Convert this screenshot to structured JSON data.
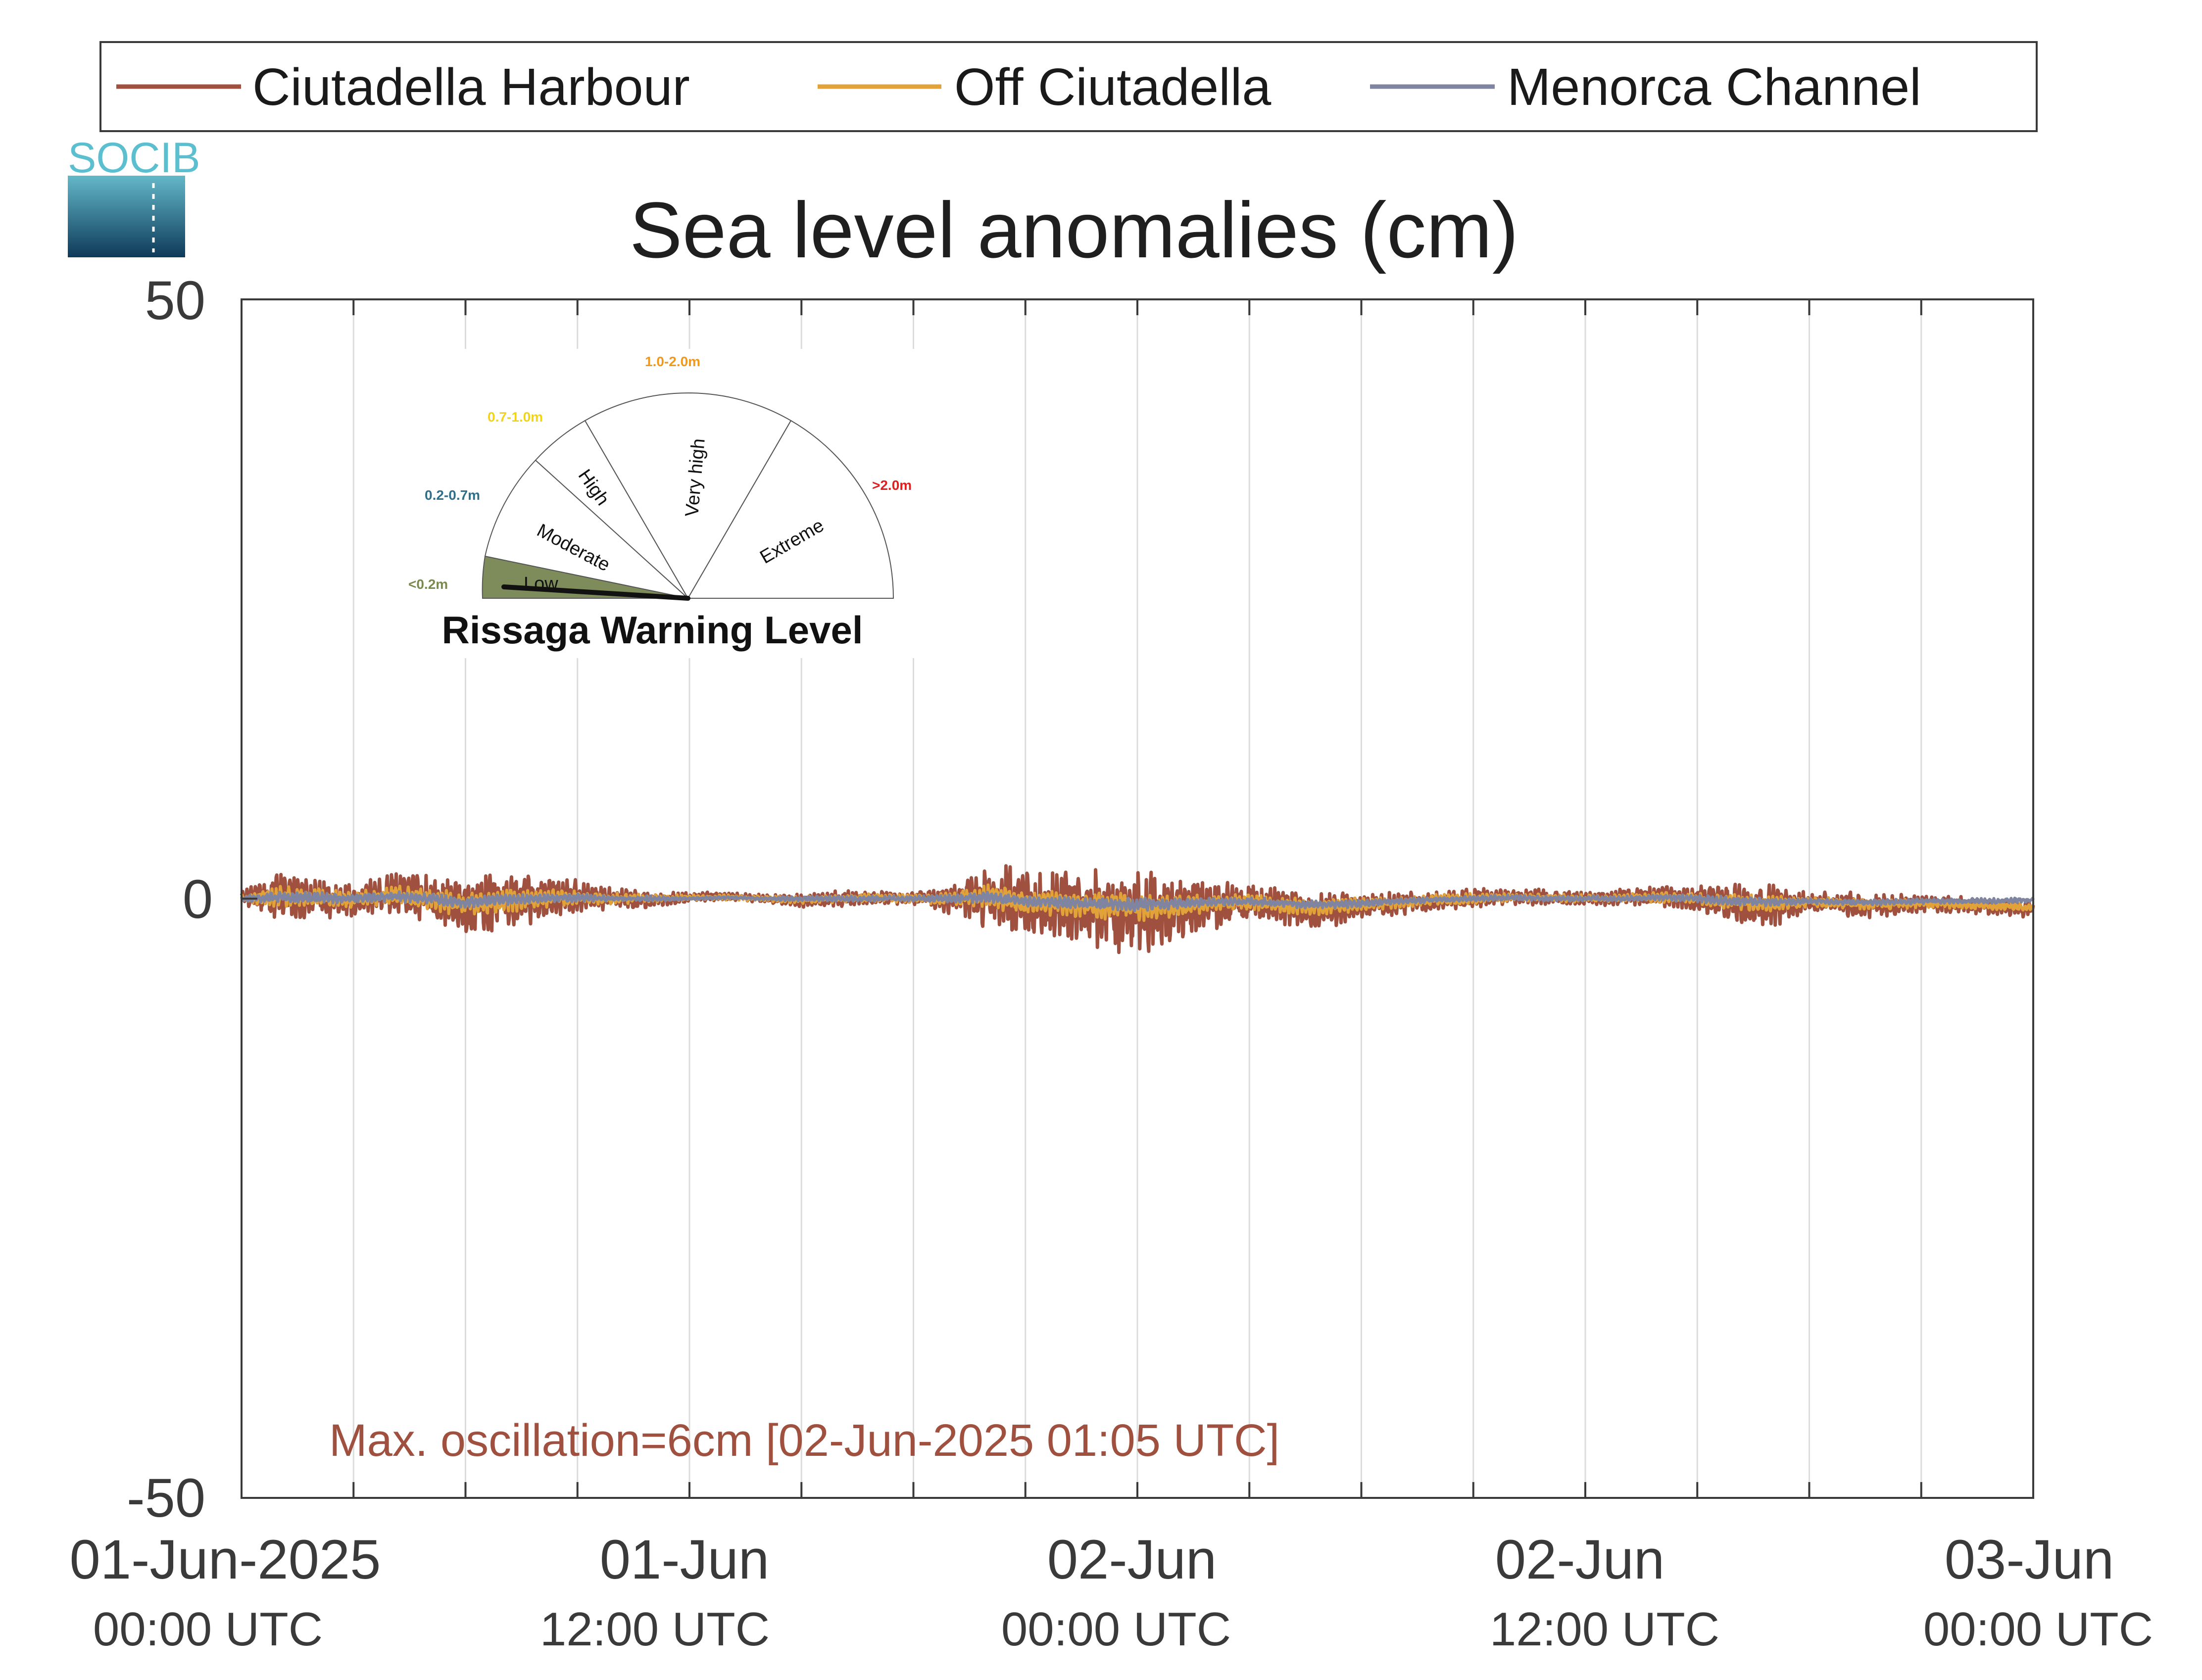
{
  "logo": {
    "text": "SOCIB"
  },
  "legend": {
    "items": [
      {
        "label": "Ciutadella Harbour",
        "color": "#a0503f"
      },
      {
        "label": "Off Ciutadella",
        "color": "#e2a23a"
      },
      {
        "label": "Menorca Channel",
        "color": "#7f85a0"
      }
    ]
  },
  "gauge": {
    "title": "Rissaga Warning Level",
    "sections": [
      {
        "name": "Low",
        "range": "<0.2m",
        "range_color": "#7a8a4e",
        "fill": "#7d8c5a"
      },
      {
        "name": "Moderate",
        "range": "0.2-0.7m",
        "range_color": "#2f6f8a",
        "fill": "#ffffff"
      },
      {
        "name": "High",
        "range": "0.7-1.0m",
        "range_color": "#f2d41a",
        "fill": "#ffffff"
      },
      {
        "name": "Very high",
        "range": "1.0-2.0m",
        "range_color": "#ef9a1c",
        "fill": "#ffffff"
      },
      {
        "name": "Extreme",
        "range": ">2.0m",
        "range_color": "#e01e1e",
        "fill": "#ffffff"
      }
    ],
    "active_level": "Low"
  },
  "annotation": {
    "text": "Max. oscillation=6cm [02-Jun-2025 01:05 UTC]",
    "color": "#a0503f"
  },
  "chart_data": {
    "type": "line",
    "title": "Sea level anomalies (cm)",
    "xlabel": "",
    "ylabel": "",
    "x_unit": "hours since 01-Jun-2025 00:00 UTC",
    "xlim": [
      0,
      48
    ],
    "ylim": [
      -50,
      50
    ],
    "yticks": [
      -50,
      0,
      50
    ],
    "xticks": [
      {
        "x": 0,
        "date": "01-Jun-2025",
        "time": "00:00 UTC"
      },
      {
        "x": 12,
        "date": "01-Jun",
        "time": "12:00 UTC"
      },
      {
        "x": 24,
        "date": "02-Jun",
        "time": "00:00 UTC"
      },
      {
        "x": 36,
        "date": "02-Jun",
        "time": "12:00 UTC"
      },
      {
        "x": 48,
        "date": "03-Jun",
        "time": "00:00 UTC"
      }
    ],
    "grid": "vertical every 3 hours",
    "legend_position": "top",
    "series": [
      {
        "name": "Ciutadella Harbour",
        "color": "#a0503f",
        "x": [
          0,
          1,
          2,
          3,
          4,
          5,
          6,
          7,
          8,
          9,
          10,
          11,
          12,
          13,
          14,
          15,
          16,
          17,
          18,
          19,
          20,
          21,
          22,
          23,
          24,
          25,
          26,
          27,
          28,
          29,
          30,
          31,
          32,
          33,
          34,
          35,
          36,
          37,
          38,
          39,
          40,
          41,
          42,
          43,
          44,
          45,
          46,
          47,
          48
        ],
        "y": [
          0,
          0.3,
          0,
          -0.2,
          0.5,
          0,
          -0.8,
          -0.3,
          0,
          0.2,
          0,
          -0.1,
          0.1,
          0.2,
          0,
          -0.2,
          0,
          0.1,
          0,
          0,
          0.3,
          -0.5,
          -0.8,
          -1.0,
          -1.2,
          -0.9,
          -0.6,
          -0.4,
          -0.8,
          -1.0,
          -0.6,
          -0.4,
          -0.2,
          0,
          0.2,
          0.1,
          0,
          0.1,
          0.2,
          0,
          -0.4,
          -0.6,
          -0.3,
          -0.5,
          -0.6,
          -0.4,
          -0.5,
          -0.7,
          -0.9
        ],
        "amplitude": [
          0.5,
          1.8,
          1.5,
          1.2,
          1.5,
          1.8,
          2.2,
          2.2,
          1.7,
          1.2,
          0.8,
          0.6,
          0.4,
          0.3,
          0.3,
          0.5,
          0.6,
          0.5,
          0.5,
          1.2,
          2.5,
          2.5,
          2.8,
          3.0,
          3.4,
          2.5,
          1.8,
          1.4,
          1.4,
          1.3,
          1.0,
          0.9,
          0.7,
          0.8,
          0.6,
          0.6,
          0.5,
          0.6,
          0.7,
          1.0,
          1.5,
          1.6,
          0.8,
          1.0,
          0.9,
          0.7,
          0.6,
          0.6,
          0.6
        ]
      },
      {
        "name": "Off Ciutadella",
        "color": "#e2a23a",
        "x": [
          0,
          1,
          2,
          3,
          4,
          5,
          6,
          7,
          8,
          9,
          10,
          11,
          12,
          13,
          14,
          15,
          16,
          17,
          18,
          19,
          20,
          21,
          22,
          23,
          24,
          25,
          26,
          27,
          28,
          29,
          30,
          31,
          32,
          33,
          34,
          35,
          36,
          37,
          38,
          39,
          40,
          41,
          42,
          43,
          44,
          45,
          46,
          47,
          48
        ],
        "y": [
          0,
          0.2,
          0.1,
          -0.1,
          0.3,
          0,
          -0.5,
          -0.2,
          0,
          0.1,
          0,
          0,
          0.1,
          0.1,
          0,
          -0.1,
          0,
          0.1,
          0,
          0,
          0.2,
          -0.3,
          -0.5,
          -0.6,
          -0.7,
          -0.6,
          -0.4,
          -0.3,
          -0.6,
          -0.7,
          -0.5,
          -0.3,
          -0.1,
          0,
          0.1,
          0.1,
          0,
          0.1,
          0.1,
          0,
          -0.3,
          -0.4,
          -0.3,
          -0.4,
          -0.5,
          -0.4,
          -0.5,
          -0.6,
          -0.8
        ],
        "amplitude": [
          0.3,
          0.8,
          0.7,
          0.6,
          0.7,
          0.8,
          0.9,
          0.9,
          0.7,
          0.5,
          0.4,
          0.3,
          0.2,
          0.2,
          0.2,
          0.3,
          0.3,
          0.3,
          0.3,
          0.5,
          0.9,
          0.9,
          1.0,
          1.0,
          1.1,
          0.9,
          0.7,
          0.6,
          0.6,
          0.6,
          0.5,
          0.4,
          0.4,
          0.4,
          0.3,
          0.3,
          0.3,
          0.3,
          0.4,
          0.4,
          0.6,
          0.6,
          0.4,
          0.4,
          0.4,
          0.3,
          0.3,
          0.3,
          0.3
        ]
      },
      {
        "name": "Menorca Channel",
        "color": "#7f85a0",
        "x": [
          0,
          1,
          2,
          3,
          4,
          5,
          6,
          7,
          8,
          9,
          10,
          11,
          12,
          13,
          14,
          15,
          16,
          17,
          18,
          19,
          20,
          21,
          22,
          23,
          24,
          25,
          26,
          27,
          28,
          29,
          30,
          31,
          32,
          33,
          34,
          35,
          36,
          37,
          38,
          39,
          40,
          41,
          42,
          43,
          44,
          45,
          46,
          47,
          48
        ],
        "y": [
          0,
          0.1,
          0.1,
          0,
          0.2,
          0,
          -0.3,
          -0.1,
          0,
          0.1,
          0,
          0,
          0,
          0.1,
          0,
          0,
          0,
          0,
          0,
          0,
          0.1,
          -0.2,
          -0.3,
          -0.4,
          -0.5,
          -0.4,
          -0.3,
          -0.2,
          -0.4,
          -0.5,
          -0.4,
          -0.2,
          -0.1,
          0,
          0.1,
          0,
          0,
          0,
          0.1,
          0,
          -0.2,
          -0.3,
          -0.2,
          -0.3,
          -0.3,
          -0.2,
          -0.2,
          -0.2,
          -0.1
        ],
        "amplitude": [
          0.2,
          0.4,
          0.4,
          0.3,
          0.4,
          0.4,
          0.4,
          0.4,
          0.3,
          0.3,
          0.2,
          0.2,
          0.1,
          0.1,
          0.1,
          0.2,
          0.2,
          0.2,
          0.2,
          0.3,
          0.4,
          0.4,
          0.4,
          0.4,
          0.5,
          0.4,
          0.3,
          0.3,
          0.3,
          0.3,
          0.3,
          0.2,
          0.2,
          0.2,
          0.2,
          0.2,
          0.2,
          0.2,
          0.2,
          0.3,
          0.3,
          0.3,
          0.2,
          0.2,
          0.2,
          0.2,
          0.2,
          0.2,
          0.2
        ]
      }
    ]
  }
}
